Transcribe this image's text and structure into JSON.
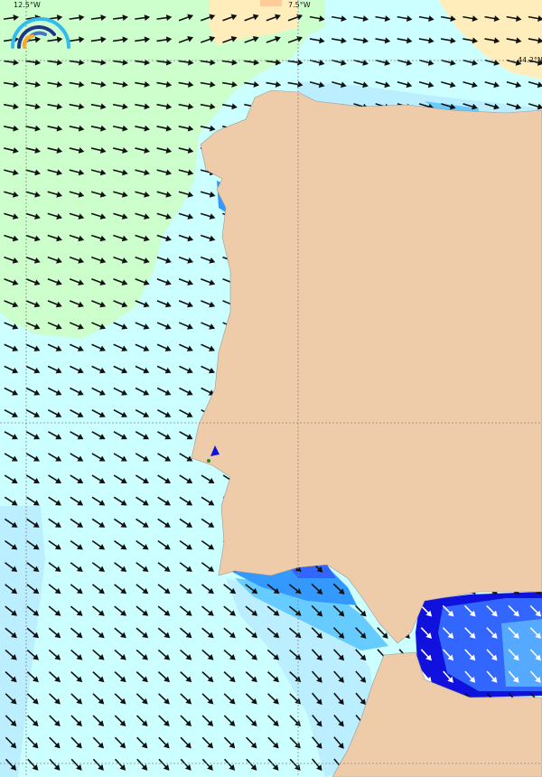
{
  "map": {
    "grid_labels": {
      "lon_west": "12.5°W",
      "lon_east": "7.5°W",
      "lat_top": "44.2°N"
    },
    "logo": "wave-arcs-logo",
    "colors": {
      "sea_base": "#ccffff",
      "calm_green": "#ccffcc",
      "warm_orange": "#ffeebb",
      "hot_spot": "#ffcc99",
      "land": "#eeccaa",
      "light_blue": "#bbeeff",
      "mid_blue": "#66ccff",
      "blue": "#3399ff",
      "strong_blue": "#3366ff",
      "deep_blue": "#1111dd",
      "arrow": "#111111",
      "arrow_on_dark": "#ffffff",
      "grid_line": "#888888"
    },
    "arrow_field": "wind-direction-arrows"
  }
}
